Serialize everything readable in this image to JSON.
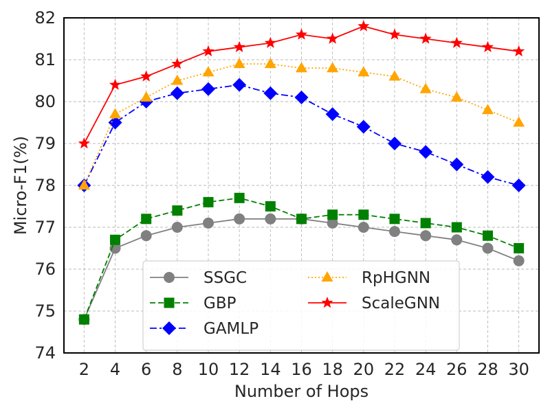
{
  "chart_data": {
    "type": "line",
    "xlabel": "Number of Hops",
    "ylabel": "Micro-F1(%)",
    "x": [
      2,
      4,
      6,
      8,
      10,
      12,
      14,
      16,
      18,
      20,
      22,
      24,
      26,
      28,
      30
    ],
    "xticks": [
      "2",
      "4",
      "6",
      "8",
      "10",
      "12",
      "14",
      "16",
      "18",
      "20",
      "22",
      "24",
      "26",
      "28",
      "30"
    ],
    "yticks": [
      "74",
      "75",
      "76",
      "77",
      "78",
      "79",
      "80",
      "81",
      "82"
    ],
    "ylim": [
      74,
      82
    ],
    "xlim": [
      0.7,
      31.3
    ],
    "grid": true,
    "legend_position": "bottom-center",
    "series": [
      {
        "name": "SSGC",
        "color": "#808080",
        "marker": "circle",
        "dash": "solid",
        "values": [
          74.8,
          76.5,
          76.8,
          77.0,
          77.1,
          77.2,
          77.2,
          77.2,
          77.1,
          77.0,
          76.9,
          76.8,
          76.7,
          76.5,
          76.2
        ]
      },
      {
        "name": "GBP",
        "color": "#008000",
        "marker": "square",
        "dash": "dashed",
        "values": [
          74.8,
          76.7,
          77.2,
          77.4,
          77.6,
          77.7,
          77.5,
          77.2,
          77.3,
          77.3,
          77.2,
          77.1,
          77.0,
          76.8,
          76.5
        ]
      },
      {
        "name": "GAMLP",
        "color": "#0000ff",
        "marker": "diamond",
        "dash": "dashdot",
        "values": [
          78.0,
          79.5,
          80.0,
          80.2,
          80.3,
          80.4,
          80.2,
          80.1,
          79.7,
          79.4,
          79.0,
          78.8,
          78.5,
          78.2,
          78.0
        ]
      },
      {
        "name": "RpHGNN",
        "color": "#ffa500",
        "marker": "triangle",
        "dash": "dotted",
        "values": [
          78.0,
          79.7,
          80.1,
          80.5,
          80.7,
          80.9,
          80.9,
          80.8,
          80.8,
          80.7,
          80.6,
          80.3,
          80.1,
          79.8,
          79.5
        ]
      },
      {
        "name": "ScaleGNN",
        "color": "#ff0000",
        "marker": "star",
        "dash": "solid",
        "values": [
          79.0,
          80.4,
          80.6,
          80.9,
          81.2,
          81.3,
          81.4,
          81.6,
          81.5,
          81.8,
          81.6,
          81.5,
          81.4,
          81.3,
          81.2
        ]
      }
    ]
  }
}
